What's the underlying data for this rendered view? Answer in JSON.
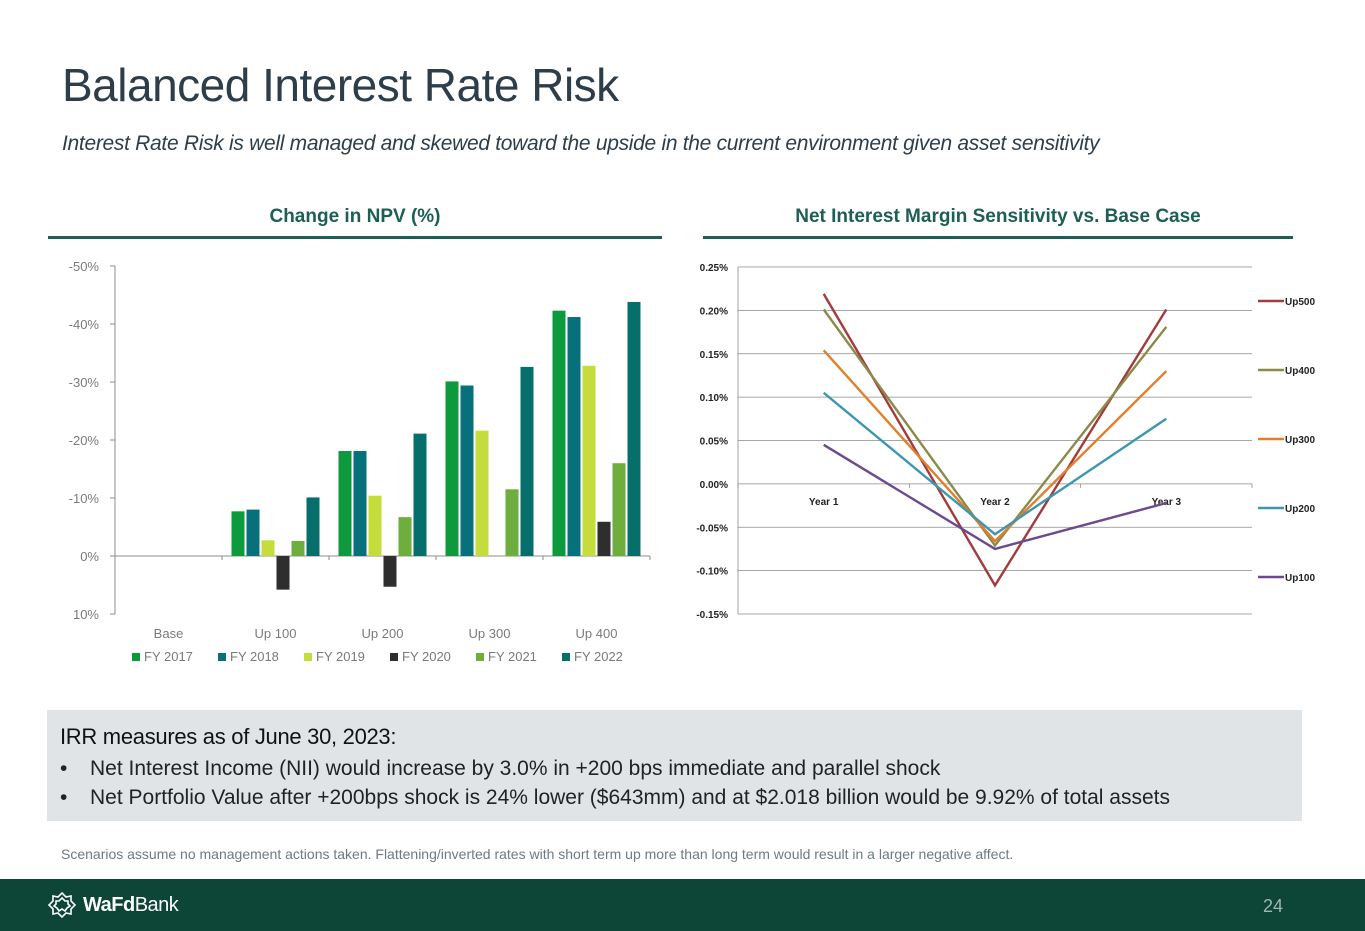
{
  "slide": {
    "title": "Balanced Interest Rate Risk",
    "subtitle": "Interest Rate Risk is well managed and skewed toward the upside in the current environment given asset sensitivity"
  },
  "colors": {
    "accent": "#1d5e55",
    "footer": "#0d4536",
    "info_box": "#e1e4e7"
  },
  "chart_data": [
    {
      "type": "bar",
      "title": "Change in NPV (%)",
      "categories": [
        "Base",
        "Up 100",
        "Up 200",
        "Up 300",
        "Up 400"
      ],
      "yticks": [
        "-50%",
        "-40%",
        "-30%",
        "-20%",
        "-10%",
        "0%",
        "10%"
      ],
      "ylim": [
        -50,
        10
      ],
      "y_inverted": true,
      "legend_position": "bottom",
      "series": [
        {
          "name": "FY 2017",
          "color": "#0c9a3c",
          "values": [
            null,
            -7.7,
            -18.1,
            -30.1,
            -42.3
          ]
        },
        {
          "name": "FY 2018",
          "color": "#08707a",
          "values": [
            null,
            -8.0,
            -18.1,
            -29.4,
            -41.2
          ]
        },
        {
          "name": "FY 2019",
          "color": "#c5dd3c",
          "values": [
            null,
            -2.7,
            -10.4,
            -21.6,
            -32.8
          ]
        },
        {
          "name": "FY 2020",
          "color": "#2e2e2e",
          "values": [
            null,
            5.8,
            5.3,
            null,
            -5.9
          ]
        },
        {
          "name": "FY 2021",
          "color": "#6eae3e",
          "values": [
            null,
            -2.6,
            -6.7,
            -11.5,
            -16.0
          ]
        },
        {
          "name": "FY 2022",
          "color": "#066f6b",
          "values": [
            null,
            -10.1,
            -21.1,
            -32.6,
            -43.8
          ]
        }
      ]
    },
    {
      "type": "line",
      "title": "Net Interest Margin Sensitivity vs. Base Case",
      "categories": [
        "Year 1",
        "Year 2",
        "Year 3"
      ],
      "yticks": [
        "0.25%",
        "0.20%",
        "0.15%",
        "0.10%",
        "0.05%",
        "0.00%",
        "-0.05%",
        "-0.10%",
        "-0.15%"
      ],
      "ylim": [
        -0.15,
        0.25
      ],
      "grid": true,
      "legend_position": "right",
      "series": [
        {
          "name": "Up500",
          "color": "#a23b3b",
          "values": [
            0.219,
            -0.117,
            0.201
          ]
        },
        {
          "name": "Up400",
          "color": "#8a8b4a",
          "values": [
            0.201,
            -0.071,
            0.181
          ]
        },
        {
          "name": "Up300",
          "color": "#e07f2e",
          "values": [
            0.154,
            -0.066,
            0.13
          ]
        },
        {
          "name": "Up200",
          "color": "#3e97b0",
          "values": [
            0.105,
            -0.058,
            0.075
          ]
        },
        {
          "name": "Up100",
          "color": "#6c4a8e",
          "values": [
            0.045,
            -0.075,
            -0.022
          ]
        }
      ]
    }
  ],
  "info": {
    "heading": "IRR measures as of June 30, 2023:",
    "bullet_char": "•",
    "bullets": [
      "Net Interest Income (NII) would increase by 3.0% in +200 bps immediate and parallel shock",
      "Net Portfolio Value after +200bps shock is 24% lower ($643mm) and at $2.018 billion would be 9.92% of total assets"
    ]
  },
  "footnote": "Scenarios assume no management actions taken.  Flattening/inverted rates with short term up more than long term would result in a larger negative affect.",
  "footer": {
    "logo_bold": "WaFd",
    "logo_regular": "Bank",
    "logo_icon": "wafd-logo-icon",
    "page_number": "24"
  }
}
